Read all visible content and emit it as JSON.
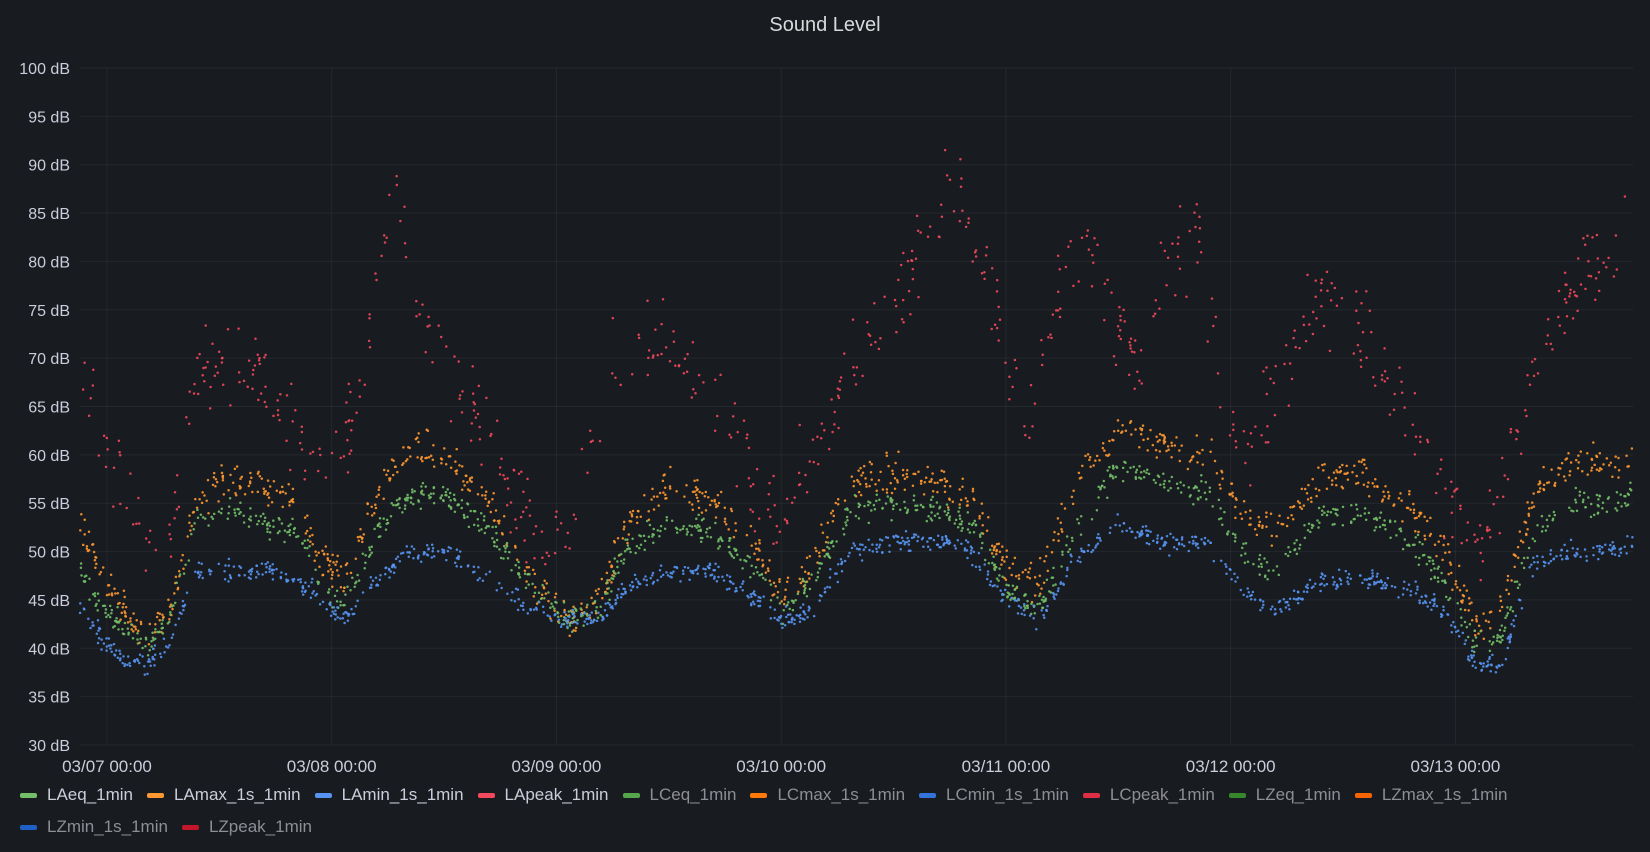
{
  "chart_data": {
    "type": "scatter",
    "title": "Sound Level",
    "xlabel": "",
    "ylabel": "",
    "ylim": [
      30,
      100
    ],
    "y_ticks": [
      {
        "value": 100,
        "label": "100 dB"
      },
      {
        "value": 95,
        "label": "95 dB"
      },
      {
        "value": 90,
        "label": "90 dB"
      },
      {
        "value": 85,
        "label": "85 dB"
      },
      {
        "value": 80,
        "label": "80 dB"
      },
      {
        "value": 75,
        "label": "75 dB"
      },
      {
        "value": 70,
        "label": "70 dB"
      },
      {
        "value": 65,
        "label": "65 dB"
      },
      {
        "value": 60,
        "label": "60 dB"
      },
      {
        "value": 55,
        "label": "55 dB"
      },
      {
        "value": 50,
        "label": "50 dB"
      },
      {
        "value": 45,
        "label": "45 dB"
      },
      {
        "value": 40,
        "label": "40 dB"
      },
      {
        "value": 35,
        "label": "35 dB"
      },
      {
        "value": 30,
        "label": "30 dB"
      }
    ],
    "xlim_days": [
      -0.12,
      6.79
    ],
    "x_ticks": [
      {
        "day": 0,
        "label": "03/07 00:00"
      },
      {
        "day": 1,
        "label": "03/08 00:00"
      },
      {
        "day": 2,
        "label": "03/09 00:00"
      },
      {
        "day": 3,
        "label": "03/10 00:00"
      },
      {
        "day": 4,
        "label": "03/11 00:00"
      },
      {
        "day": 5,
        "label": "03/12 00:00"
      },
      {
        "day": 6,
        "label": "03/13 00:00"
      }
    ],
    "grid": true,
    "legend_position": "bottom",
    "series": [
      {
        "name": "LApeak_1min",
        "color": "#f2495c",
        "spread": 6.5,
        "density": 7,
        "values": [
          [
            -0.12,
            70
          ],
          [
            -0.02,
            62
          ],
          [
            0.08,
            56
          ],
          [
            0.18,
            50
          ],
          [
            0.28,
            52
          ],
          [
            0.4,
            68
          ],
          [
            0.55,
            70
          ],
          [
            0.7,
            67
          ],
          [
            0.85,
            62
          ],
          [
            0.95,
            58
          ],
          [
            1.1,
            64
          ],
          [
            1.28,
            87
          ],
          [
            1.38,
            74
          ],
          [
            1.55,
            68
          ],
          [
            1.75,
            58
          ],
          [
            1.9,
            52
          ],
          [
            2.05,
            51
          ],
          [
            2.25,
            70
          ],
          [
            2.5,
            72
          ],
          [
            2.7,
            66
          ],
          [
            2.9,
            56
          ],
          [
            3.0,
            52
          ],
          [
            3.15,
            62
          ],
          [
            3.3,
            68
          ],
          [
            3.5,
            76
          ],
          [
            3.65,
            84
          ],
          [
            3.75,
            88
          ],
          [
            3.9,
            80
          ],
          [
            3.98,
            72
          ],
          [
            4.1,
            62
          ],
          [
            4.25,
            78
          ],
          [
            4.38,
            82
          ],
          [
            4.48,
            74
          ],
          [
            4.6,
            70
          ],
          [
            4.72,
            80
          ],
          [
            4.85,
            82
          ],
          [
            4.95,
            70
          ],
          [
            5.05,
            58
          ],
          [
            5.2,
            68
          ],
          [
            5.4,
            76
          ],
          [
            5.6,
            72
          ],
          [
            5.8,
            64
          ],
          [
            5.95,
            56
          ],
          [
            6.1,
            51
          ],
          [
            6.25,
            60
          ],
          [
            6.4,
            72
          ],
          [
            6.55,
            78
          ],
          [
            6.7,
            80
          ],
          [
            6.79,
            86
          ]
        ]
      },
      {
        "name": "LAmax_1s_1min",
        "color": "#ff9830",
        "spread": 2.8,
        "density": 11,
        "values": [
          [
            -0.12,
            53
          ],
          [
            -0.02,
            48
          ],
          [
            0.08,
            44
          ],
          [
            0.18,
            41
          ],
          [
            0.28,
            44
          ],
          [
            0.4,
            55
          ],
          [
            0.55,
            58
          ],
          [
            0.7,
            57
          ],
          [
            0.85,
            55
          ],
          [
            0.95,
            49
          ],
          [
            1.05,
            47
          ],
          [
            1.2,
            56
          ],
          [
            1.35,
            61
          ],
          [
            1.5,
            60
          ],
          [
            1.7,
            55
          ],
          [
            1.9,
            47
          ],
          [
            2.05,
            43
          ],
          [
            2.2,
            45
          ],
          [
            2.3,
            52
          ],
          [
            2.5,
            57
          ],
          [
            2.7,
            55
          ],
          [
            2.9,
            50
          ],
          [
            3.0,
            45
          ],
          [
            3.15,
            49
          ],
          [
            3.3,
            57
          ],
          [
            3.5,
            58
          ],
          [
            3.7,
            57
          ],
          [
            3.85,
            56
          ],
          [
            4.0,
            48
          ],
          [
            4.15,
            47
          ],
          [
            4.3,
            56
          ],
          [
            4.5,
            63
          ],
          [
            4.7,
            61
          ],
          [
            4.9,
            60
          ],
          [
            5.05,
            54
          ],
          [
            5.2,
            52
          ],
          [
            5.4,
            58
          ],
          [
            5.6,
            58
          ],
          [
            5.8,
            55
          ],
          [
            5.95,
            50
          ],
          [
            6.1,
            42
          ],
          [
            6.2,
            44
          ],
          [
            6.35,
            56
          ],
          [
            6.5,
            59
          ],
          [
            6.7,
            59
          ],
          [
            6.79,
            60
          ]
        ]
      },
      {
        "name": "LAeq_1min",
        "color": "#73bf69",
        "spread": 2.0,
        "density": 11,
        "values": [
          [
            -0.12,
            48
          ],
          [
            -0.02,
            44
          ],
          [
            0.08,
            42
          ],
          [
            0.18,
            40
          ],
          [
            0.28,
            43
          ],
          [
            0.4,
            53
          ],
          [
            0.55,
            54
          ],
          [
            0.7,
            53
          ],
          [
            0.85,
            52
          ],
          [
            0.95,
            47
          ],
          [
            1.05,
            44
          ],
          [
            1.2,
            52
          ],
          [
            1.35,
            56
          ],
          [
            1.5,
            56
          ],
          [
            1.7,
            52
          ],
          [
            1.9,
            46
          ],
          [
            2.05,
            43
          ],
          [
            2.2,
            44
          ],
          [
            2.3,
            50
          ],
          [
            2.5,
            53
          ],
          [
            2.7,
            52
          ],
          [
            2.9,
            48
          ],
          [
            3.0,
            44
          ],
          [
            3.15,
            47
          ],
          [
            3.3,
            54
          ],
          [
            3.5,
            55
          ],
          [
            3.7,
            54
          ],
          [
            3.85,
            53
          ],
          [
            4.0,
            46
          ],
          [
            4.15,
            44
          ],
          [
            4.3,
            52
          ],
          [
            4.5,
            59
          ],
          [
            4.7,
            57
          ],
          [
            4.9,
            56
          ],
          [
            5.05,
            50
          ],
          [
            5.2,
            48
          ],
          [
            5.4,
            54
          ],
          [
            5.6,
            54
          ],
          [
            5.8,
            51
          ],
          [
            5.95,
            47
          ],
          [
            6.1,
            40
          ],
          [
            6.2,
            41
          ],
          [
            6.35,
            52
          ],
          [
            6.5,
            55
          ],
          [
            6.7,
            55
          ],
          [
            6.79,
            56
          ]
        ]
      },
      {
        "name": "LAmin_1s_1min",
        "color": "#5794f2",
        "spread": 1.5,
        "density": 11,
        "values": [
          [
            -0.12,
            44
          ],
          [
            -0.02,
            41
          ],
          [
            0.08,
            39
          ],
          [
            0.18,
            38
          ],
          [
            0.28,
            41
          ],
          [
            0.4,
            48
          ],
          [
            0.55,
            48
          ],
          [
            0.7,
            48
          ],
          [
            0.85,
            47
          ],
          [
            0.95,
            45
          ],
          [
            1.05,
            43
          ],
          [
            1.2,
            47
          ],
          [
            1.35,
            50
          ],
          [
            1.5,
            50
          ],
          [
            1.7,
            47
          ],
          [
            1.9,
            44
          ],
          [
            2.05,
            43
          ],
          [
            2.2,
            43
          ],
          [
            2.3,
            46
          ],
          [
            2.5,
            48
          ],
          [
            2.7,
            48
          ],
          [
            2.9,
            45
          ],
          [
            3.0,
            43
          ],
          [
            3.15,
            44
          ],
          [
            3.3,
            50
          ],
          [
            3.5,
            51
          ],
          [
            3.7,
            51
          ],
          [
            3.85,
            50
          ],
          [
            4.0,
            45
          ],
          [
            4.15,
            43
          ],
          [
            4.3,
            49
          ],
          [
            4.5,
            53
          ],
          [
            4.7,
            51
          ],
          [
            4.9,
            51
          ],
          [
            5.05,
            46
          ],
          [
            5.2,
            44
          ],
          [
            5.4,
            47
          ],
          [
            5.6,
            47
          ],
          [
            5.8,
            46
          ],
          [
            5.95,
            44
          ],
          [
            6.1,
            38
          ],
          [
            6.2,
            38
          ],
          [
            6.35,
            49
          ],
          [
            6.5,
            50
          ],
          [
            6.7,
            50
          ],
          [
            6.79,
            51
          ]
        ]
      }
    ]
  },
  "legend": [
    {
      "label": "LAeq_1min",
      "color": "#73bf69",
      "dim": false
    },
    {
      "label": "LAmax_1s_1min",
      "color": "#ff9830",
      "dim": false
    },
    {
      "label": "LAmin_1s_1min",
      "color": "#5794f2",
      "dim": false
    },
    {
      "label": "LApeak_1min",
      "color": "#f2495c",
      "dim": false
    },
    {
      "label": "LCeq_1min",
      "color": "#56a64b",
      "dim": true
    },
    {
      "label": "LCmax_1s_1min",
      "color": "#ff780a",
      "dim": true
    },
    {
      "label": "LCmin_1s_1min",
      "color": "#3274d9",
      "dim": true
    },
    {
      "label": "LCpeak_1min",
      "color": "#e02f44",
      "dim": true
    },
    {
      "label": "LZeq_1min",
      "color": "#37872d",
      "dim": true
    },
    {
      "label": "LZmax_1s_1min",
      "color": "#fa6400",
      "dim": true
    },
    {
      "label": "LZmin_1s_1min",
      "color": "#1f60c4",
      "dim": true
    },
    {
      "label": "LZpeak_1min",
      "color": "#c4162a",
      "dim": true
    }
  ]
}
